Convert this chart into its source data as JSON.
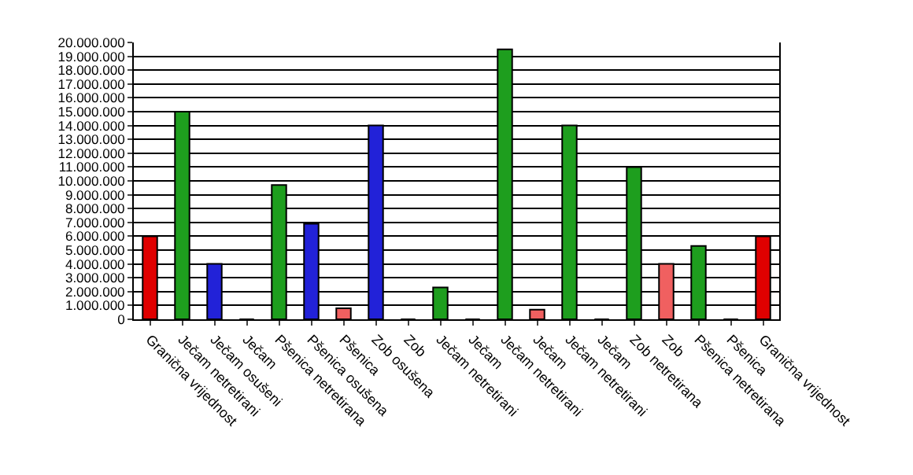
{
  "chart_data": {
    "type": "bar",
    "categories": [
      "Granična vrijednost",
      "Ječam netretirani",
      "Ječam osušeni",
      "Ječam",
      "Pšenica netretirana",
      "Pšenica osušena",
      "Pšenica",
      "Zob osušena",
      "Zob",
      "Ječam netretirani",
      "Ječam",
      "Ječam netretirani",
      "Ječam",
      "Ječam netretirani",
      "Ječam",
      "Zob netretirana",
      "Zob",
      "Pšenica netretirana",
      "Pšenica",
      "Granična vrijednost"
    ],
    "values": [
      6000000,
      15000000,
      4000000,
      0,
      9700000,
      6900000,
      800000,
      14000000,
      0,
      2300000,
      0,
      19500000,
      700000,
      14000000,
      0,
      11000000,
      4000000,
      5300000,
      0,
      6000000
    ],
    "colors": [
      "#e00000",
      "#1e9e1e",
      "#2222d8",
      "#000000",
      "#1e9e1e",
      "#2222d8",
      "#f06060",
      "#2222d8",
      "#000000",
      "#1e9e1e",
      "#000000",
      "#1e9e1e",
      "#f06060",
      "#1e9e1e",
      "#000000",
      "#1e9e1e",
      "#f06060",
      "#1e9e1e",
      "#000000",
      "#e00000"
    ],
    "ylim": [
      0,
      20000000
    ],
    "yticks": [
      0,
      {
        "value": 1000000,
        "label": "1.000.000"
      },
      {
        "value": 2000000,
        "label": "2.000.000"
      },
      {
        "value": 3000000,
        "label": "3.000.000"
      },
      {
        "value": 4000000,
        "label": "4.000.000"
      },
      {
        "value": 5000000,
        "label": "5.000.000"
      },
      {
        "value": 6000000,
        "label": "6.000.000"
      },
      {
        "value": 7000000,
        "label": "7.000.000"
      },
      {
        "value": 8000000,
        "label": "8.000.000"
      },
      {
        "value": 9000000,
        "label": "9.000.000"
      },
      {
        "value": 10000000,
        "label": "10.000.000"
      },
      {
        "value": 11000000,
        "label": "11.000.000"
      },
      {
        "value": 12000000,
        "label": "12.000.000"
      },
      {
        "value": 13000000,
        "label": "13.000.000"
      },
      {
        "value": 14000000,
        "label": "14.000.000"
      },
      {
        "value": 15000000,
        "label": "15.000.000"
      },
      {
        "value": 16000000,
        "label": "16.000.000"
      },
      {
        "value": 17000000,
        "label": "17.000.000"
      },
      {
        "value": 18000000,
        "label": "18.000.000"
      },
      {
        "value": 19000000,
        "label": "19.000.000"
      },
      {
        "value": 20000000,
        "label": "20.000.000"
      }
    ],
    "grid": "y"
  }
}
